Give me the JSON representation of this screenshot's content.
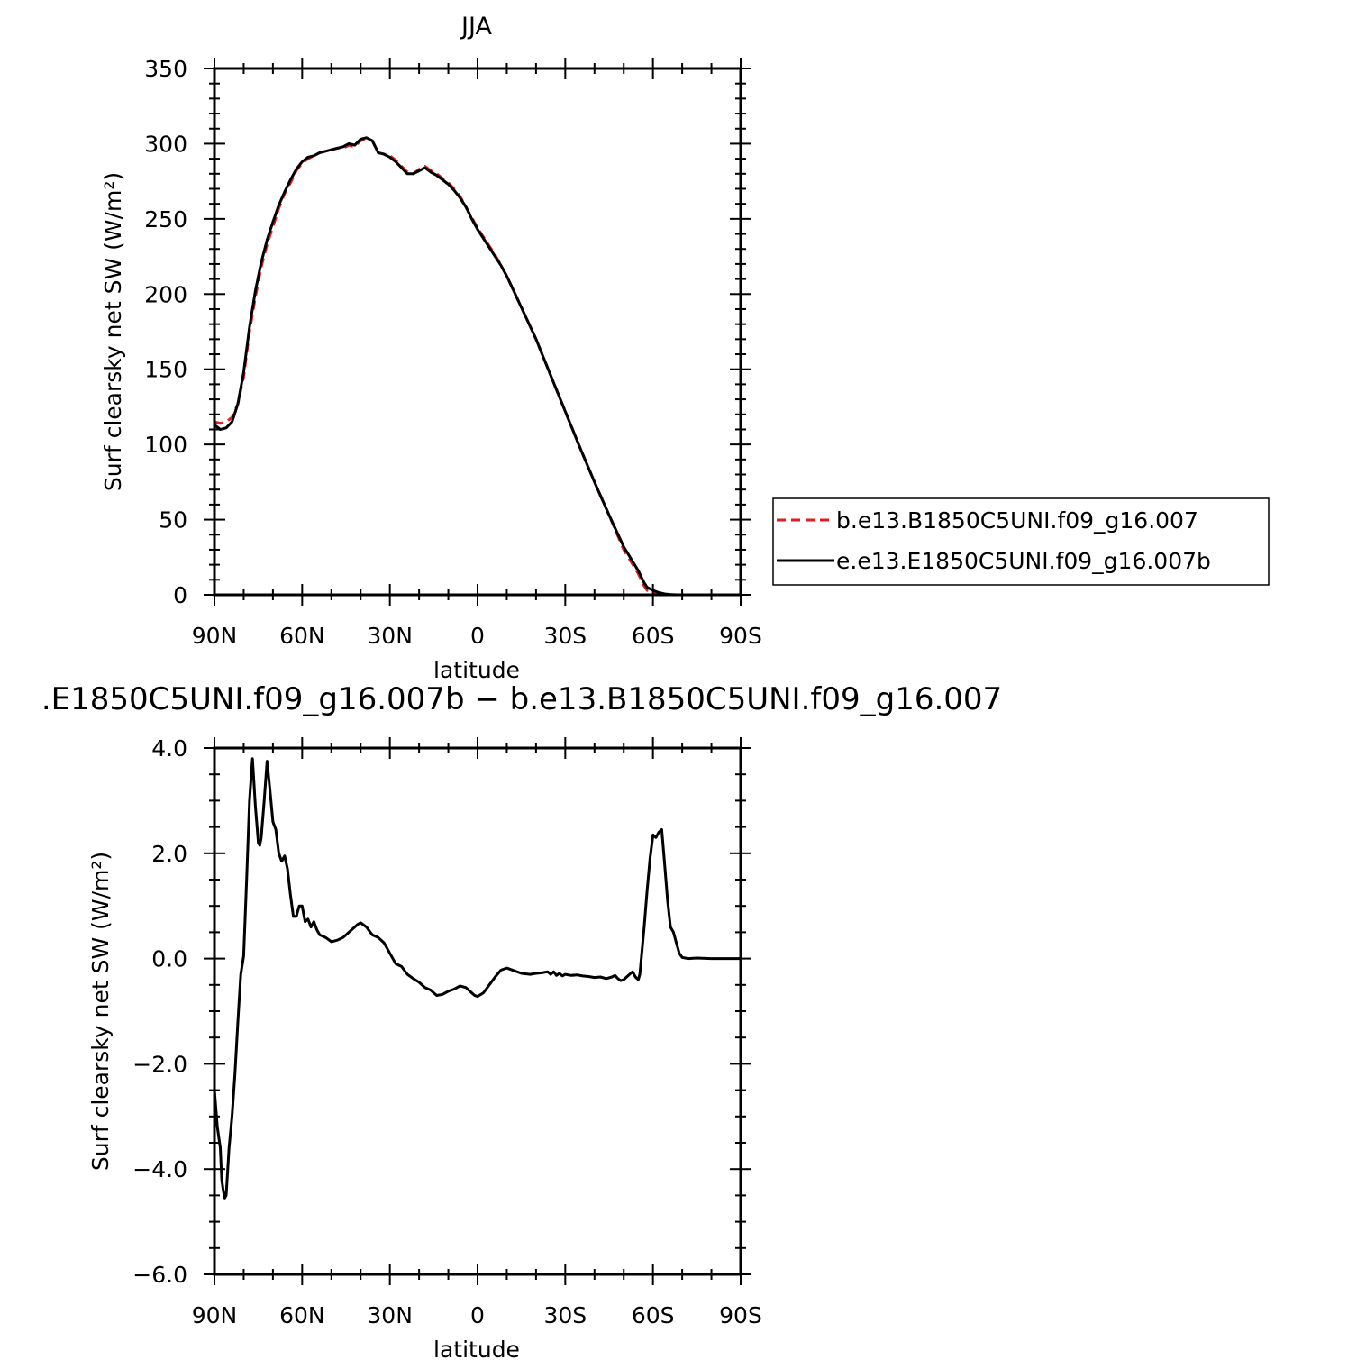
{
  "chart_data": [
    {
      "type": "line",
      "title": "JJA",
      "xlabel": "latitude",
      "ylabel": "Surf clearsky net SW (W/m²)",
      "x_range": [
        90,
        -90
      ],
      "x_ticks": [
        90,
        60,
        30,
        0,
        -30,
        -60,
        -90
      ],
      "x_tick_labels": [
        "90N",
        "60N",
        "30N",
        "0",
        "30S",
        "60S",
        "90S"
      ],
      "ylim": [
        0,
        350
      ],
      "y_ticks": [
        0,
        50,
        100,
        150,
        200,
        250,
        300,
        350
      ],
      "y_tick_labels": [
        "0",
        "50",
        "100",
        "150",
        "200",
        "250",
        "300",
        "350"
      ],
      "grid": false,
      "legend_position": "right",
      "series": [
        {
          "name": "b.e13.B1850C5UNI.f09_g16.007",
          "color": "#e41a1c",
          "style": "dashed",
          "x": [
            90,
            88,
            86,
            84,
            82,
            80,
            78,
            76,
            74,
            72,
            70,
            68,
            66,
            64,
            62,
            60,
            58,
            56,
            54,
            52,
            50,
            48,
            46,
            44,
            42,
            40,
            38,
            36,
            34,
            32,
            30,
            28,
            26,
            24,
            22,
            20,
            18,
            16,
            14,
            12,
            10,
            8,
            6,
            4,
            2,
            0,
            -2,
            -4,
            -6,
            -8,
            -10,
            -15,
            -20,
            -25,
            -30,
            -35,
            -40,
            -45,
            -50,
            -55,
            -57,
            -58,
            -60,
            -62,
            -64,
            -66,
            -68,
            -70,
            -75,
            -80,
            -85,
            -90
          ],
          "y": [
            115,
            114,
            115,
            118,
            127,
            145,
            175,
            198,
            218,
            233,
            245,
            257,
            267,
            274,
            282,
            287,
            290,
            292,
            294,
            295,
            296,
            297,
            297,
            299,
            298,
            302,
            303,
            302,
            294,
            293,
            292,
            289,
            285,
            281,
            280,
            283,
            285,
            282,
            280,
            277,
            274,
            270,
            265,
            258,
            251,
            244,
            238,
            232,
            226,
            219,
            212,
            191,
            170,
            146,
            122,
            98,
            75,
            53,
            30,
            14,
            6,
            3,
            1.5,
            0.8,
            0.3,
            0.1,
            0,
            0,
            0,
            0,
            0,
            0
          ]
        },
        {
          "name": "e.e13.E1850C5UNI.f09_g16.007b",
          "color": "#000000",
          "style": "solid",
          "x": [
            90,
            88,
            86,
            84,
            82,
            80,
            78,
            76,
            74,
            72,
            70,
            68,
            66,
            64,
            62,
            60,
            58,
            56,
            54,
            52,
            50,
            48,
            46,
            44,
            42,
            40,
            38,
            36,
            34,
            32,
            30,
            28,
            26,
            24,
            22,
            20,
            18,
            16,
            14,
            12,
            10,
            8,
            6,
            4,
            2,
            0,
            -2,
            -4,
            -6,
            -8,
            -10,
            -15,
            -20,
            -25,
            -30,
            -35,
            -40,
            -45,
            -50,
            -55,
            -57,
            -58,
            -60,
            -62,
            -64,
            -66,
            -68,
            -70,
            -75,
            -80,
            -85,
            -90
          ],
          "y": [
            113,
            110,
            111,
            115,
            127,
            148,
            178,
            202,
            221,
            236,
            248,
            259,
            268,
            276,
            283,
            288,
            291,
            292,
            294,
            295,
            296,
            297,
            298,
            300,
            299,
            303,
            304,
            302,
            294,
            293,
            291,
            288,
            284,
            280,
            280,
            282,
            284,
            281,
            279,
            276,
            273,
            269,
            264,
            258,
            250,
            243,
            237,
            231,
            225,
            219,
            212,
            191,
            170,
            146,
            122,
            98,
            75,
            53,
            32,
            16,
            8,
            5,
            3,
            1.5,
            0.6,
            0.2,
            0,
            0,
            0,
            0,
            0,
            0
          ]
        }
      ]
    },
    {
      "type": "line",
      "title": ".E1850C5UNI.f09_g16.007b − b.e13.B1850C5UNI.f09_g16.007",
      "xlabel": "latitude",
      "ylabel": "Surf clearsky net SW (W/m²)",
      "x_range": [
        90,
        -90
      ],
      "x_ticks": [
        90,
        60,
        30,
        0,
        -30,
        -60,
        -90
      ],
      "x_tick_labels": [
        "90N",
        "60N",
        "30N",
        "0",
        "30S",
        "60S",
        "90S"
      ],
      "ylim": [
        -6,
        4
      ],
      "y_ticks": [
        -6,
        -4,
        -2,
        0,
        2,
        4
      ],
      "y_tick_labels": [
        "−6.0",
        "−4.0",
        "−2.0",
        "0.0",
        "2.0",
        "4.0"
      ],
      "grid": false,
      "series": [
        {
          "color": "#000000",
          "style": "solid",
          "x": [
            90,
            89,
            88,
            87.5,
            87,
            86.5,
            86,
            85,
            84,
            83,
            82,
            81,
            80,
            79,
            78,
            77,
            76,
            75,
            74.5,
            74,
            73,
            72,
            71,
            70,
            69,
            68,
            67,
            66,
            65,
            64,
            63,
            62,
            61,
            60,
            59,
            58,
            57,
            56,
            55,
            54,
            52,
            50,
            48,
            46,
            44,
            42,
            41,
            40,
            38,
            36,
            34,
            32,
            30,
            28,
            26,
            24,
            22,
            20,
            18,
            16,
            15,
            14,
            12,
            10,
            8,
            6,
            4,
            2,
            1,
            0,
            -2,
            -4,
            -6,
            -8,
            -10,
            -12,
            -15,
            -18,
            -20,
            -22,
            -24,
            -25,
            -26,
            -27,
            -28,
            -29,
            -30,
            -32,
            -34,
            -36,
            -38,
            -40,
            -42,
            -44,
            -46,
            -47,
            -48,
            -49,
            -50,
            -51,
            -52,
            -53,
            -54,
            -55,
            -55.5,
            -56,
            -57,
            -58,
            -59,
            -60,
            -61,
            -62,
            -63,
            -64,
            -65,
            -66,
            -67,
            -68,
            -69,
            -70,
            -72,
            -75,
            -80,
            -85,
            -90
          ],
          "y": [
            -2.5,
            -3.2,
            -3.6,
            -4.2,
            -4.4,
            -4.55,
            -4.5,
            -3.6,
            -3.0,
            -2.2,
            -1.2,
            -0.3,
            0.05,
            1.5,
            3.0,
            3.8,
            2.9,
            2.2,
            2.15,
            2.3,
            3.0,
            3.75,
            3.2,
            2.6,
            2.45,
            2.0,
            1.85,
            1.95,
            1.7,
            1.2,
            0.8,
            0.8,
            1.0,
            1.0,
            0.7,
            0.75,
            0.6,
            0.7,
            0.55,
            0.45,
            0.4,
            0.32,
            0.35,
            0.4,
            0.5,
            0.6,
            0.65,
            0.68,
            0.6,
            0.45,
            0.4,
            0.3,
            0.1,
            -0.1,
            -0.15,
            -0.3,
            -0.38,
            -0.45,
            -0.55,
            -0.6,
            -0.65,
            -0.7,
            -0.68,
            -0.62,
            -0.58,
            -0.52,
            -0.55,
            -0.65,
            -0.7,
            -0.72,
            -0.65,
            -0.5,
            -0.35,
            -0.22,
            -0.18,
            -0.22,
            -0.28,
            -0.3,
            -0.28,
            -0.27,
            -0.25,
            -0.3,
            -0.25,
            -0.32,
            -0.28,
            -0.33,
            -0.3,
            -0.32,
            -0.31,
            -0.33,
            -0.34,
            -0.36,
            -0.35,
            -0.38,
            -0.35,
            -0.32,
            -0.38,
            -0.42,
            -0.4,
            -0.35,
            -0.3,
            -0.25,
            -0.35,
            -0.4,
            -0.3,
            0.0,
            0.6,
            1.3,
            1.9,
            2.35,
            2.3,
            2.4,
            2.45,
            1.8,
            1.1,
            0.6,
            0.5,
            0.3,
            0.1,
            0.02,
            0.0,
            0.01,
            0.0,
            0.0,
            0.0
          ]
        }
      ]
    }
  ]
}
